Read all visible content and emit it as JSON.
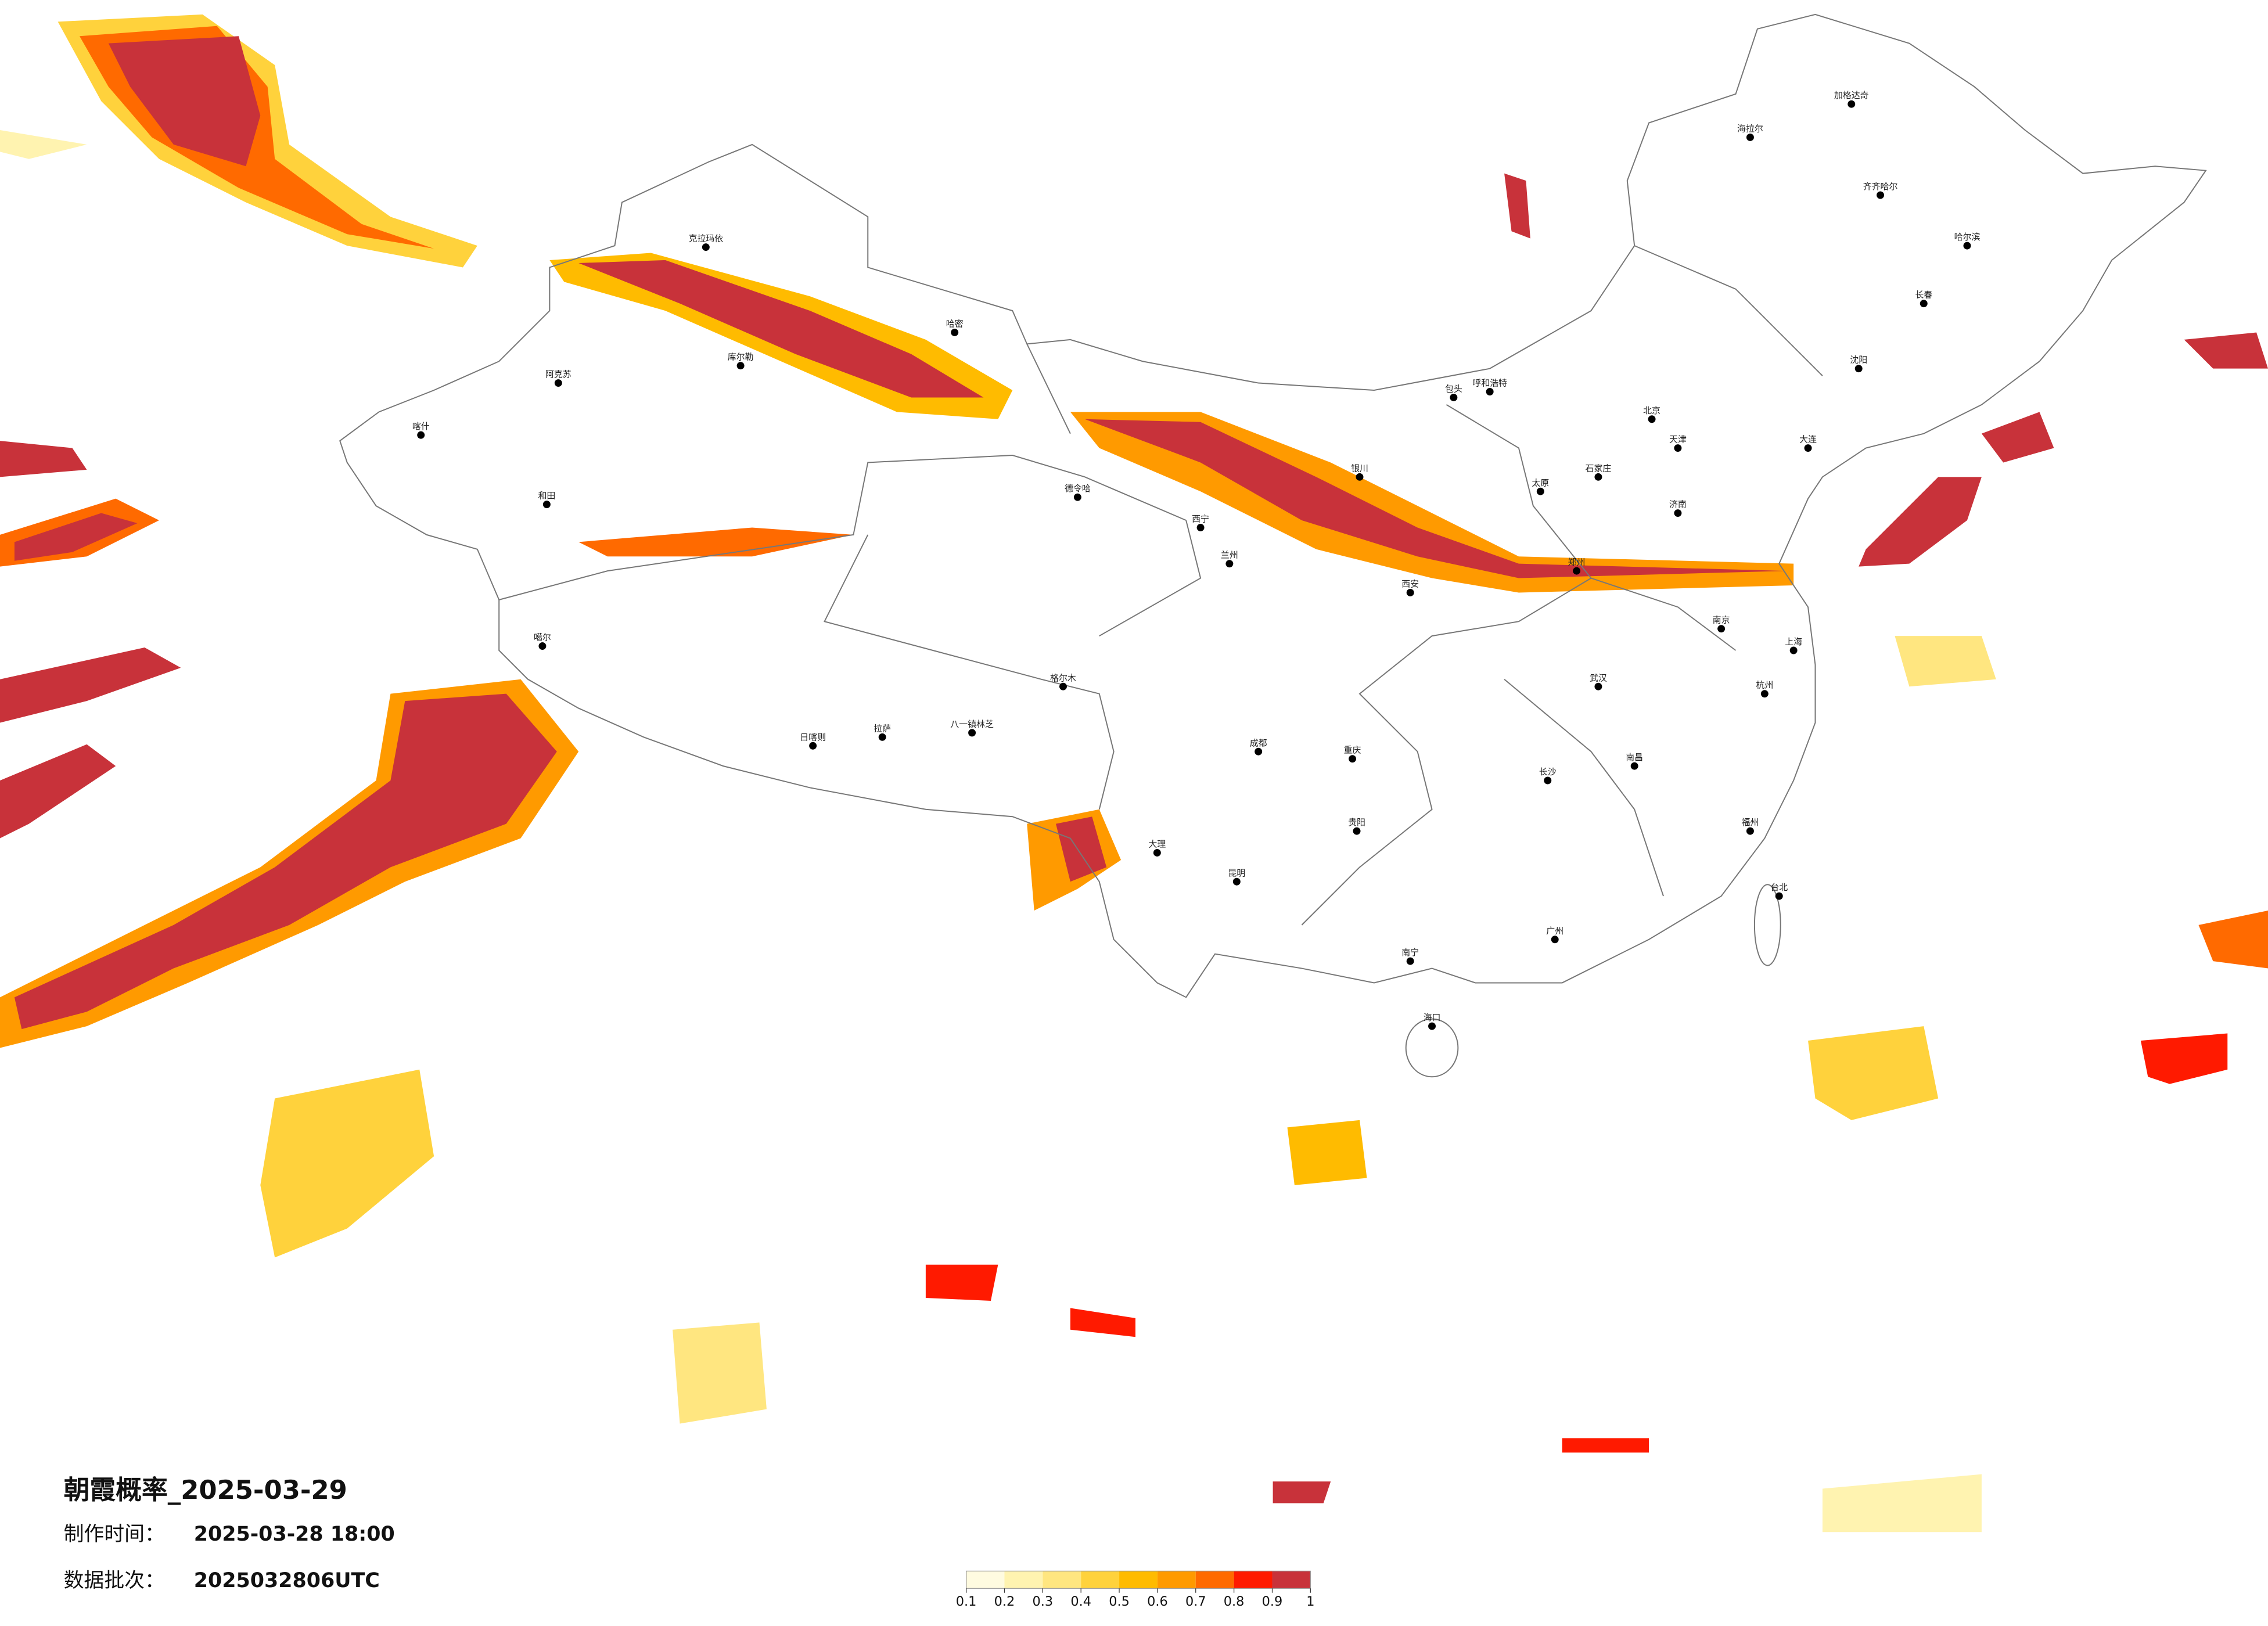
{
  "title": "朝霞概率_2025-03-29",
  "made_label": "制作时间：",
  "made_time": "2025-03-28 18:00",
  "batch_label": "数据批次：",
  "batch": "2025032806UTC",
  "colorbar": {
    "ticks": [
      0.1,
      0.2,
      0.3,
      0.4,
      0.5,
      0.6,
      0.7,
      0.8,
      0.9,
      1
    ],
    "colors": [
      "#fffbe0",
      "#fff3b0",
      "#ffe680",
      "#ffd23c",
      "#ffbb00",
      "#ff9a00",
      "#ff6a00",
      "#ff1a00",
      "#c8323a"
    ]
  },
  "cities": [
    "克拉玛依",
    "哈密",
    "库尔勒",
    "阿克苏",
    "喀什",
    "和田",
    "德令哈",
    "格尔木",
    "拉萨",
    "日喀则",
    "八一镇林芝",
    "噶尔",
    "西宁",
    "兰州",
    "银川",
    "呼和浩特",
    "包头",
    "北京",
    "天津",
    "石家庄",
    "太原",
    "济南",
    "郑州",
    "西安",
    "成都",
    "重庆",
    "武汉",
    "南京",
    "上海",
    "杭州",
    "长沙",
    "南昌",
    "福州",
    "广州",
    "南宁",
    "昆明",
    "贵阳",
    "大理",
    "海口",
    "台北",
    "哈尔滨",
    "长春",
    "沈阳",
    "大连",
    "齐齐哈尔",
    "海拉尔",
    "加格达奇"
  ]
}
